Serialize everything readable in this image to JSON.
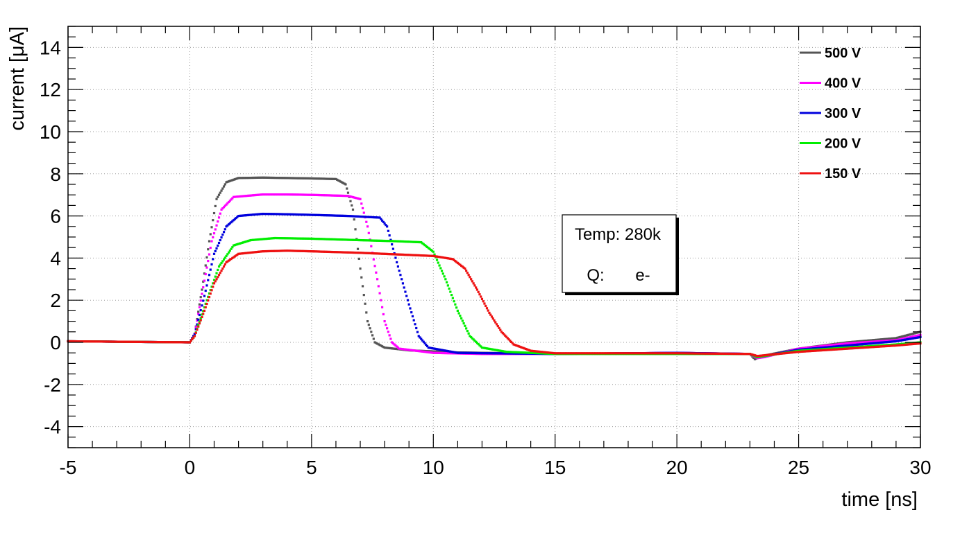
{
  "chart_data": {
    "type": "scatter",
    "title": "",
    "xlabel": "time [ns]",
    "ylabel": "current [μA]",
    "xlim": [
      -5,
      30
    ],
    "ylim": [
      -5,
      15
    ],
    "xticks": [
      -5,
      0,
      5,
      10,
      15,
      20,
      25,
      30
    ],
    "xtick_labels": [
      "-5",
      "0",
      "5",
      "10",
      "15",
      "20",
      "25",
      "30"
    ],
    "yticks": [
      -4,
      -2,
      0,
      2,
      4,
      6,
      8,
      10,
      12,
      14
    ],
    "ytick_labels": [
      "-4",
      "-2",
      "0",
      "2",
      "4",
      "6",
      "8",
      "10",
      "12",
      "14"
    ],
    "grid": true,
    "legend_position": "top-right",
    "series": [
      {
        "name": "500 V",
        "color": "#555555",
        "points": [
          [
            -5,
            0.05
          ],
          [
            0,
            0
          ],
          [
            0.2,
            0.4
          ],
          [
            0.5,
            2.5
          ],
          [
            0.8,
            4.8
          ],
          [
            1.1,
            6.8
          ],
          [
            1.5,
            7.6
          ],
          [
            2.0,
            7.8
          ],
          [
            3.0,
            7.82
          ],
          [
            4.0,
            7.8
          ],
          [
            5.0,
            7.78
          ],
          [
            6.0,
            7.75
          ],
          [
            6.4,
            7.5
          ],
          [
            6.7,
            6.3
          ],
          [
            7.0,
            3.5
          ],
          [
            7.3,
            1.0
          ],
          [
            7.6,
            0.0
          ],
          [
            8.0,
            -0.25
          ],
          [
            9.0,
            -0.38
          ],
          [
            11.0,
            -0.48
          ],
          [
            15.0,
            -0.55
          ],
          [
            20.0,
            -0.5
          ],
          [
            23.0,
            -0.55
          ],
          [
            23.2,
            -0.8
          ],
          [
            23.5,
            -0.65
          ],
          [
            25.0,
            -0.3
          ],
          [
            27.0,
            0.0
          ],
          [
            29.0,
            0.2
          ],
          [
            30.0,
            0.5
          ]
        ]
      },
      {
        "name": "400 V",
        "color": "#ff00ff",
        "points": [
          [
            -5,
            0.05
          ],
          [
            0,
            0
          ],
          [
            0.2,
            0.4
          ],
          [
            0.5,
            2.3
          ],
          [
            0.9,
            4.8
          ],
          [
            1.3,
            6.3
          ],
          [
            1.8,
            6.9
          ],
          [
            3.0,
            7.02
          ],
          [
            4.0,
            7.02
          ],
          [
            5.0,
            7.0
          ],
          [
            6.5,
            6.95
          ],
          [
            7.0,
            6.8
          ],
          [
            7.3,
            5.5
          ],
          [
            7.7,
            3.0
          ],
          [
            8.0,
            1.0
          ],
          [
            8.3,
            0.0
          ],
          [
            8.6,
            -0.3
          ],
          [
            10.0,
            -0.5
          ],
          [
            12.0,
            -0.55
          ],
          [
            15.0,
            -0.55
          ],
          [
            20.0,
            -0.5
          ],
          [
            23.0,
            -0.55
          ],
          [
            23.3,
            -0.75
          ],
          [
            23.6,
            -0.7
          ],
          [
            25.0,
            -0.3
          ],
          [
            27.0,
            -0.05
          ],
          [
            29.0,
            0.1
          ],
          [
            30.0,
            0.35
          ]
        ]
      },
      {
        "name": "300 V",
        "color": "#0000dd",
        "points": [
          [
            -5,
            0.05
          ],
          [
            0,
            0
          ],
          [
            0.2,
            0.4
          ],
          [
            0.6,
            2.2
          ],
          [
            1.0,
            4.2
          ],
          [
            1.5,
            5.5
          ],
          [
            2.0,
            6.0
          ],
          [
            3.0,
            6.1
          ],
          [
            4.0,
            6.08
          ],
          [
            5.0,
            6.05
          ],
          [
            6.5,
            6.0
          ],
          [
            7.8,
            5.92
          ],
          [
            8.1,
            5.5
          ],
          [
            8.5,
            3.8
          ],
          [
            9.0,
            1.8
          ],
          [
            9.4,
            0.3
          ],
          [
            9.8,
            -0.25
          ],
          [
            11.0,
            -0.5
          ],
          [
            15.0,
            -0.55
          ],
          [
            20.0,
            -0.5
          ],
          [
            23.0,
            -0.55
          ],
          [
            23.3,
            -0.7
          ],
          [
            23.6,
            -0.65
          ],
          [
            25.0,
            -0.35
          ],
          [
            27.0,
            -0.15
          ],
          [
            29.0,
            0.05
          ],
          [
            30.0,
            0.25
          ]
        ]
      },
      {
        "name": "200 V",
        "color": "#00ee00",
        "points": [
          [
            -5,
            0.05
          ],
          [
            0,
            0
          ],
          [
            0.2,
            0.3
          ],
          [
            0.7,
            2.0
          ],
          [
            1.2,
            3.6
          ],
          [
            1.8,
            4.6
          ],
          [
            2.5,
            4.85
          ],
          [
            3.5,
            4.95
          ],
          [
            5.0,
            4.92
          ],
          [
            7.0,
            4.85
          ],
          [
            8.5,
            4.8
          ],
          [
            9.5,
            4.75
          ],
          [
            10.0,
            4.3
          ],
          [
            10.5,
            3.0
          ],
          [
            11.0,
            1.5
          ],
          [
            11.5,
            0.3
          ],
          [
            12.0,
            -0.25
          ],
          [
            13.0,
            -0.45
          ],
          [
            15.0,
            -0.55
          ],
          [
            20.0,
            -0.55
          ],
          [
            23.0,
            -0.55
          ],
          [
            23.3,
            -0.7
          ],
          [
            25.0,
            -0.4
          ],
          [
            27.0,
            -0.25
          ],
          [
            29.0,
            -0.1
          ],
          [
            30.0,
            0.0
          ]
        ]
      },
      {
        "name": "150 V",
        "color": "#ee1111",
        "points": [
          [
            -5,
            0.05
          ],
          [
            0,
            0
          ],
          [
            0.2,
            0.3
          ],
          [
            0.6,
            1.5
          ],
          [
            1.0,
            2.8
          ],
          [
            1.5,
            3.8
          ],
          [
            2.0,
            4.2
          ],
          [
            3.0,
            4.32
          ],
          [
            4.0,
            4.35
          ],
          [
            5.0,
            4.32
          ],
          [
            7.0,
            4.25
          ],
          [
            9.0,
            4.15
          ],
          [
            10.0,
            4.1
          ],
          [
            10.8,
            3.95
          ],
          [
            11.3,
            3.5
          ],
          [
            11.8,
            2.5
          ],
          [
            12.3,
            1.4
          ],
          [
            12.8,
            0.5
          ],
          [
            13.3,
            -0.1
          ],
          [
            14.0,
            -0.4
          ],
          [
            15.0,
            -0.52
          ],
          [
            20.0,
            -0.52
          ],
          [
            23.0,
            -0.55
          ],
          [
            23.3,
            -0.65
          ],
          [
            25.0,
            -0.45
          ],
          [
            27.0,
            -0.3
          ],
          [
            29.0,
            -0.15
          ],
          [
            30.0,
            -0.05
          ]
        ]
      }
    ],
    "annotations": {
      "temp": "Temp: 280k",
      "q_label": "Q:",
      "q_value": "e-"
    }
  }
}
